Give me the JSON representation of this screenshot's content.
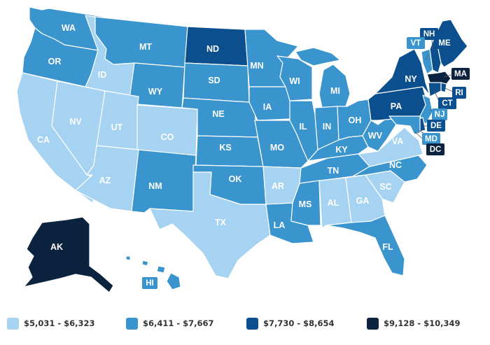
{
  "colors": {
    "tier1": "#a6d3f2",
    "tier2": "#3a95ce",
    "tier3": "#0b4f8f",
    "tier4": "#0c2340",
    "border": "#ffffff"
  },
  "legend": [
    {
      "tier": "tier1",
      "label": "$5,031 - $6,323"
    },
    {
      "tier": "tier2",
      "label": "$6,411 - $7,667"
    },
    {
      "tier": "tier3",
      "label": "$7,730 - $8,654"
    },
    {
      "tier": "tier4",
      "label": "$9,128 - $10,349"
    }
  ],
  "states": [
    {
      "abbr": "WA",
      "tier": "tier2"
    },
    {
      "abbr": "OR",
      "tier": "tier2"
    },
    {
      "abbr": "CA",
      "tier": "tier1"
    },
    {
      "abbr": "NV",
      "tier": "tier1"
    },
    {
      "abbr": "ID",
      "tier": "tier1"
    },
    {
      "abbr": "MT",
      "tier": "tier2"
    },
    {
      "abbr": "WY",
      "tier": "tier2"
    },
    {
      "abbr": "UT",
      "tier": "tier1"
    },
    {
      "abbr": "CO",
      "tier": "tier1"
    },
    {
      "abbr": "AZ",
      "tier": "tier1"
    },
    {
      "abbr": "NM",
      "tier": "tier2"
    },
    {
      "abbr": "ND",
      "tier": "tier3"
    },
    {
      "abbr": "SD",
      "tier": "tier2"
    },
    {
      "abbr": "NE",
      "tier": "tier2"
    },
    {
      "abbr": "KS",
      "tier": "tier2"
    },
    {
      "abbr": "OK",
      "tier": "tier2"
    },
    {
      "abbr": "TX",
      "tier": "tier1"
    },
    {
      "abbr": "MN",
      "tier": "tier2"
    },
    {
      "abbr": "IA",
      "tier": "tier2"
    },
    {
      "abbr": "MO",
      "tier": "tier2"
    },
    {
      "abbr": "AR",
      "tier": "tier1"
    },
    {
      "abbr": "LA",
      "tier": "tier2"
    },
    {
      "abbr": "WI",
      "tier": "tier2"
    },
    {
      "abbr": "IL",
      "tier": "tier2"
    },
    {
      "abbr": "MI",
      "tier": "tier2"
    },
    {
      "abbr": "IN",
      "tier": "tier2"
    },
    {
      "abbr": "OH",
      "tier": "tier2"
    },
    {
      "abbr": "KY",
      "tier": "tier2"
    },
    {
      "abbr": "TN",
      "tier": "tier2"
    },
    {
      "abbr": "MS",
      "tier": "tier2"
    },
    {
      "abbr": "AL",
      "tier": "tier1"
    },
    {
      "abbr": "GA",
      "tier": "tier1"
    },
    {
      "abbr": "FL",
      "tier": "tier2"
    },
    {
      "abbr": "SC",
      "tier": "tier1"
    },
    {
      "abbr": "NC",
      "tier": "tier2"
    },
    {
      "abbr": "VA",
      "tier": "tier1"
    },
    {
      "abbr": "WV",
      "tier": "tier2"
    },
    {
      "abbr": "PA",
      "tier": "tier3"
    },
    {
      "abbr": "NY",
      "tier": "tier3"
    },
    {
      "abbr": "VT",
      "tier": "tier2"
    },
    {
      "abbr": "NH",
      "tier": "tier3"
    },
    {
      "abbr": "ME",
      "tier": "tier3"
    },
    {
      "abbr": "MA",
      "tier": "tier4"
    },
    {
      "abbr": "RI",
      "tier": "tier3"
    },
    {
      "abbr": "CT",
      "tier": "tier3"
    },
    {
      "abbr": "NJ",
      "tier": "tier2"
    },
    {
      "abbr": "DE",
      "tier": "tier3"
    },
    {
      "abbr": "MD",
      "tier": "tier2"
    },
    {
      "abbr": "DC",
      "tier": "tier4"
    },
    {
      "abbr": "AK",
      "tier": "tier4"
    },
    {
      "abbr": "HI",
      "tier": "tier2"
    }
  ]
}
